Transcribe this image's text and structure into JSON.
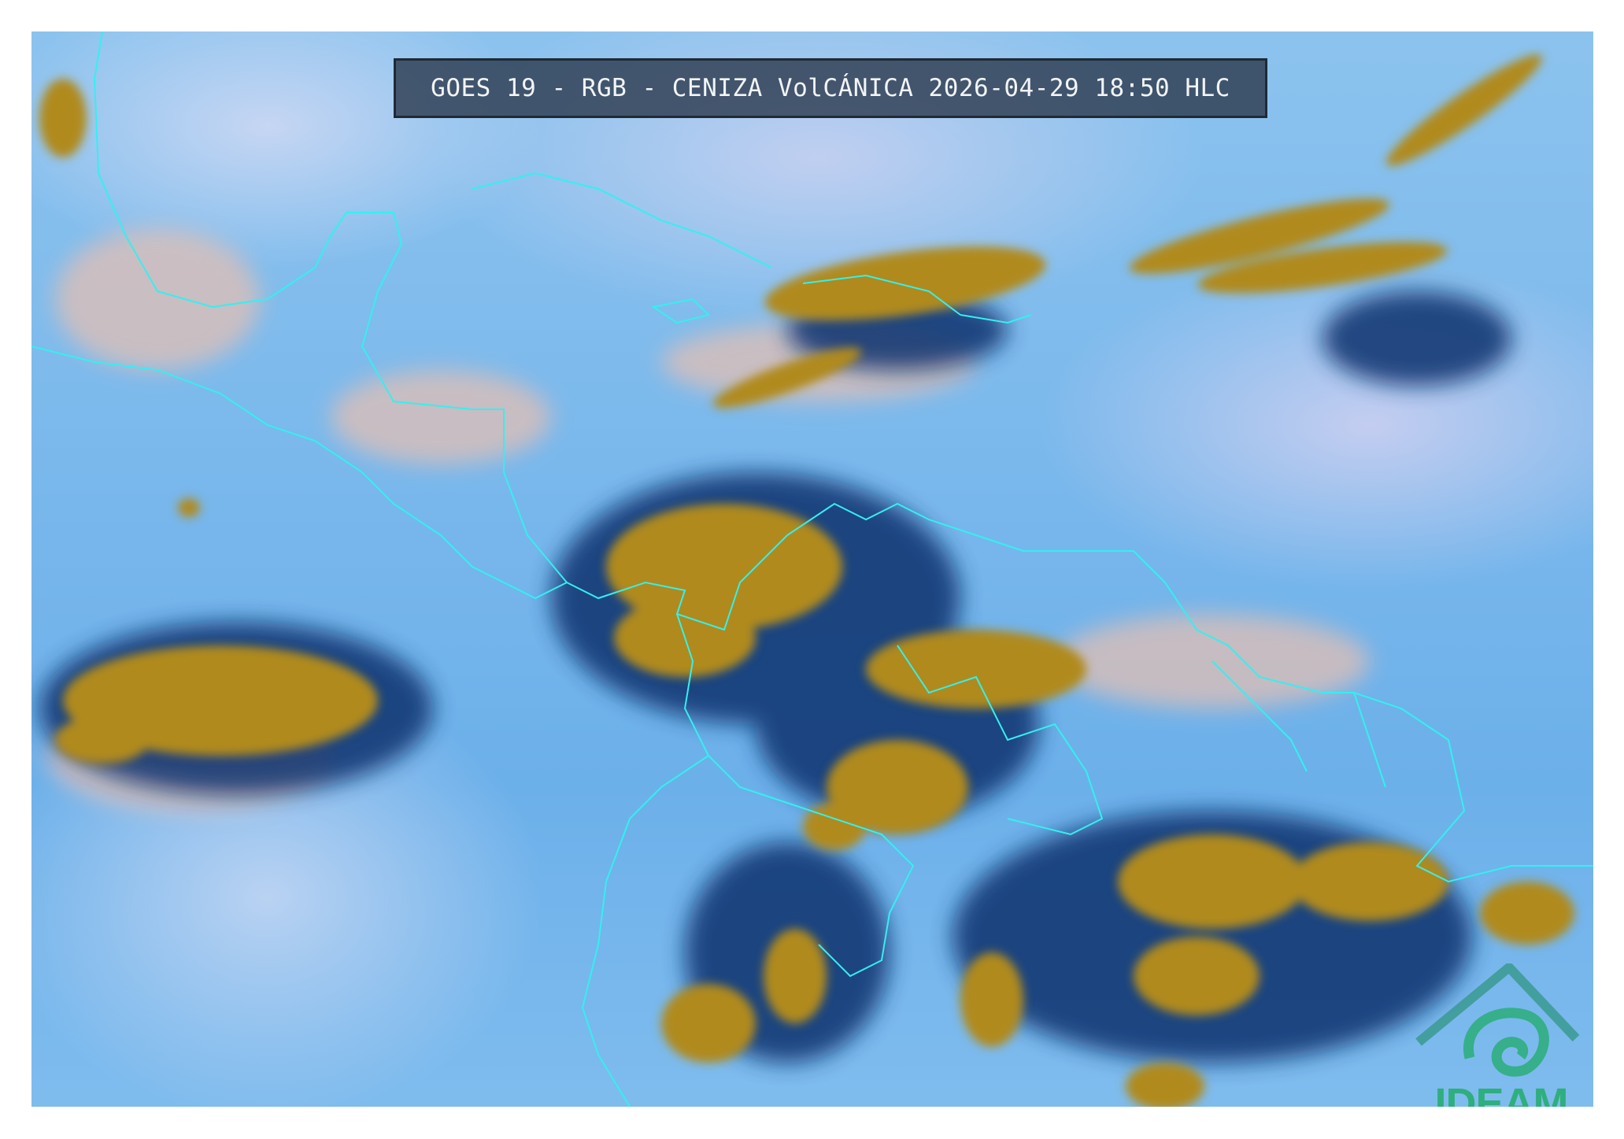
{
  "title": "GOES 19 - RGB - CENIZA VolCÁNICA 2026-04-29 18:50 HLC",
  "logo": {
    "text": "IDEAM"
  },
  "colors": {
    "cloud_high": "#b08a1c",
    "cloud_dark": "#12306e",
    "clear_sky": "#7ab8ec",
    "dust_haze": "#d8b9b0",
    "borders": "#33f0f0",
    "logo": "#2fae7e"
  }
}
